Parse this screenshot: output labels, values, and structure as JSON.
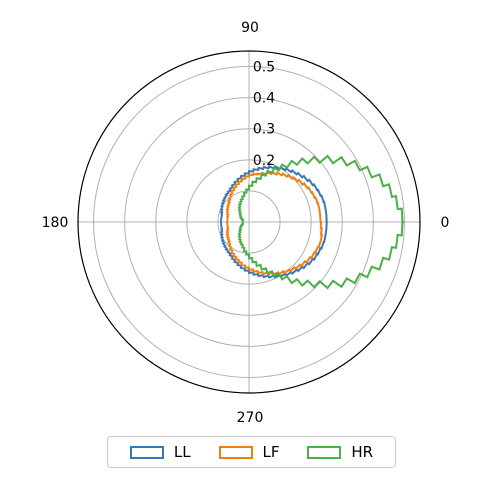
{
  "chart_data": {
    "type": "polar-step-line",
    "theta_ticks": [
      "0",
      "90",
      "180",
      "270"
    ],
    "r_ticks": [
      0.2,
      0.3,
      0.4,
      0.5
    ],
    "r_max": 0.55,
    "grid": true,
    "legend_position": "bottom",
    "series": [
      {
        "name": "LL",
        "color": "#3a78b5",
        "theta_deg": [
          0,
          15,
          30,
          45,
          60,
          75,
          90,
          105,
          120,
          135,
          150,
          165,
          180,
          195,
          210,
          225,
          240,
          255,
          270,
          285,
          300,
          315,
          330,
          345
        ],
        "r": [
          0.25,
          0.25,
          0.24,
          0.22,
          0.2,
          0.18,
          0.16,
          0.14,
          0.12,
          0.11,
          0.1,
          0.09,
          0.09,
          0.09,
          0.1,
          0.11,
          0.12,
          0.14,
          0.16,
          0.18,
          0.2,
          0.22,
          0.24,
          0.25
        ]
      },
      {
        "name": "LF",
        "color": "#f07f13",
        "theta_deg": [
          0,
          15,
          30,
          45,
          60,
          75,
          90,
          105,
          120,
          135,
          150,
          165,
          180,
          195,
          210,
          225,
          240,
          255,
          270,
          285,
          300,
          315,
          330,
          345
        ],
        "r": [
          0.23,
          0.23,
          0.22,
          0.2,
          0.18,
          0.16,
          0.15,
          0.13,
          0.11,
          0.09,
          0.08,
          0.07,
          0.07,
          0.07,
          0.08,
          0.09,
          0.11,
          0.13,
          0.15,
          0.17,
          0.19,
          0.21,
          0.23,
          0.24
        ]
      },
      {
        "name": "HR",
        "color": "#4daf4a",
        "theta_deg": [
          0,
          15,
          30,
          45,
          60,
          75,
          90,
          105,
          120,
          135,
          150,
          165,
          180,
          195,
          210,
          225,
          240,
          255,
          270,
          285,
          300,
          315,
          330,
          345
        ],
        "r": [
          0.5,
          0.46,
          0.38,
          0.28,
          0.2,
          0.15,
          0.11,
          0.08,
          0.06,
          0.04,
          0.03,
          0.02,
          0.02,
          0.02,
          0.03,
          0.04,
          0.06,
          0.08,
          0.11,
          0.15,
          0.2,
          0.28,
          0.38,
          0.46
        ]
      }
    ]
  }
}
